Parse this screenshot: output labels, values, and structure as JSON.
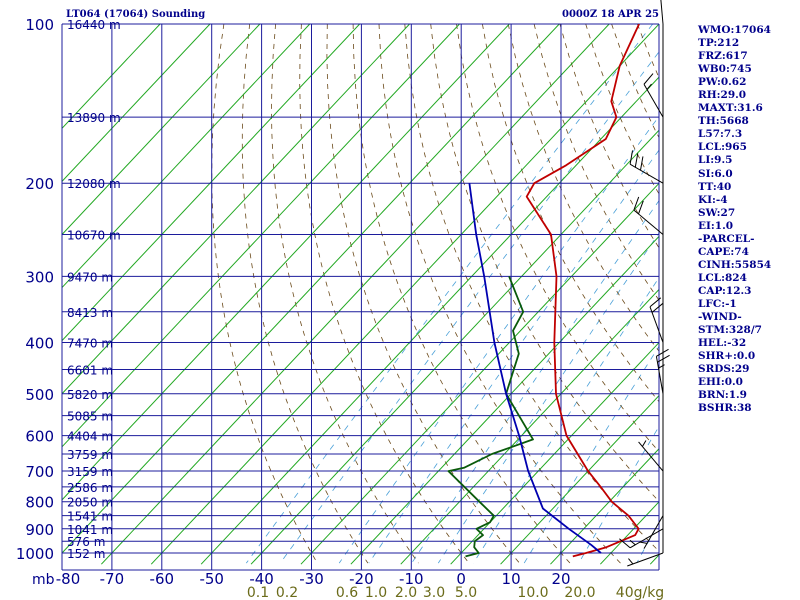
{
  "header": {
    "title": "LT064 (17064) Sounding",
    "datetime": "0000Z 18 APR 25"
  },
  "stats": [
    "WMO:17064",
    "TP:212",
    "FRZ:617",
    "WB0:745",
    "PW:0.62",
    "RH:29.0",
    "MAXT:31.6",
    "TH:5668",
    "L57:7.3",
    "LCL:965",
    "LI:9.5",
    "SI:6.0",
    "TT:40",
    "KI:-4",
    "SW:27",
    "EI:1.0",
    "-PARCEL-",
    "CAPE:74",
    "CINH:55854",
    "LCL:824",
    "CAP:12.3",
    "LFC:-1",
    "-WIND-",
    "STM:328/7",
    "HEL:-32",
    "SHR+:0.0",
    "SRDS:29",
    "EHI:0.0",
    "BRN:1.9",
    "BSHR:38"
  ],
  "colors": {
    "grid": "#1c1c9c",
    "axis_text": "#00008b",
    "temperature": "#c00000",
    "dewpoint": "#0a5a0a",
    "parcel": "#0000b0",
    "isotherm": "#22a822",
    "dry_adiabat": "#6b4a1a",
    "mixing_ratio": "#4aa0d8",
    "wind_barb": "#000000"
  },
  "chart_data": {
    "type": "line",
    "subtype": "skew-T log-P sounding",
    "pressure_unit": "mb",
    "pressure_axis_label": "mb",
    "pressure_levels": [
      100,
      200,
      300,
      400,
      500,
      600,
      700,
      800,
      900,
      1000
    ],
    "pressure_range": [
      100,
      1050
    ],
    "pressure_scale": "log",
    "temperature_ticks": [
      -80,
      -70,
      -60,
      -50,
      -40,
      -30,
      -20,
      -10,
      0,
      10,
      20
    ],
    "mixing_ratio_labels": [
      "0.1",
      "0.2",
      "0.6",
      "1.0",
      "2.0",
      "3.0",
      "5.0",
      "10.0",
      "20.0",
      "40g/kg"
    ],
    "height_labels": [
      {
        "p": 100,
        "text": "16440 m"
      },
      {
        "p": 150,
        "text": "13890 m"
      },
      {
        "p": 200,
        "text": "12080 m"
      },
      {
        "p": 250,
        "text": "10670 m"
      },
      {
        "p": 300,
        "text": "9470 m"
      },
      {
        "p": 350,
        "text": "8413 m"
      },
      {
        "p": 400,
        "text": "7470 m"
      },
      {
        "p": 450,
        "text": "6601 m"
      },
      {
        "p": 500,
        "text": "5820 m"
      },
      {
        "p": 550,
        "text": "5085 m"
      },
      {
        "p": 600,
        "text": "4404 m"
      },
      {
        "p": 650,
        "text": "3759 m"
      },
      {
        "p": 700,
        "text": "3159 m"
      },
      {
        "p": 750,
        "text": "2586 m"
      },
      {
        "p": 800,
        "text": "2050 m"
      },
      {
        "p": 850,
        "text": "1541 m"
      },
      {
        "p": 900,
        "text": "1041 m"
      },
      {
        "p": 950,
        "text": "576 m"
      },
      {
        "p": 1000,
        "text": "152 m"
      }
    ],
    "series": [
      {
        "name": "temperature",
        "points": [
          {
            "p": 1015,
            "t": 23.0
          },
          {
            "p": 1000,
            "t": 25.0
          },
          {
            "p": 975,
            "t": 28.0
          },
          {
            "p": 925,
            "t": 31.5
          },
          {
            "p": 900,
            "t": 31.0
          },
          {
            "p": 850,
            "t": 26.5
          },
          {
            "p": 800,
            "t": 20.5
          },
          {
            "p": 750,
            "t": 15.5
          },
          {
            "p": 700,
            "t": 10.0
          },
          {
            "p": 600,
            "t": -1.0
          },
          {
            "p": 500,
            "t": -11.0
          },
          {
            "p": 400,
            "t": -21.0
          },
          {
            "p": 300,
            "t": -33.0
          },
          {
            "p": 250,
            "t": -42.0
          },
          {
            "p": 212,
            "t": -54.0
          },
          {
            "p": 200,
            "t": -55.0
          },
          {
            "p": 185,
            "t": -52.0
          },
          {
            "p": 165,
            "t": -49.0
          },
          {
            "p": 150,
            "t": -51.0
          },
          {
            "p": 140,
            "t": -55.0
          },
          {
            "p": 120,
            "t": -60.0
          },
          {
            "p": 100,
            "t": -64.0
          }
        ]
      },
      {
        "name": "dewpoint",
        "points": [
          {
            "p": 1015,
            "t": 1.5
          },
          {
            "p": 1000,
            "t": 3.5
          },
          {
            "p": 975,
            "t": 1.5
          },
          {
            "p": 950,
            "t": 0.5
          },
          {
            "p": 925,
            "t": 1.0
          },
          {
            "p": 900,
            "t": -1.5
          },
          {
            "p": 875,
            "t": 0.0
          },
          {
            "p": 850,
            "t": -0.5
          },
          {
            "p": 800,
            "t": -6.0
          },
          {
            "p": 700,
            "t": -18.0
          },
          {
            "p": 690,
            "t": -15.5
          },
          {
            "p": 650,
            "t": -12.5
          },
          {
            "p": 610,
            "t": -7.0
          },
          {
            "p": 500,
            "t": -21.0
          },
          {
            "p": 420,
            "t": -26.0
          },
          {
            "p": 380,
            "t": -31.5
          },
          {
            "p": 350,
            "t": -33.0
          },
          {
            "p": 300,
            "t": -42.5
          }
        ]
      },
      {
        "name": "parcel",
        "points": [
          {
            "p": 1000,
            "t": 28.0
          },
          {
            "p": 965,
            "t": 24.5
          },
          {
            "p": 900,
            "t": 17.0
          },
          {
            "p": 824,
            "t": 8.0
          },
          {
            "p": 700,
            "t": -2.0
          },
          {
            "p": 600,
            "t": -10.5
          },
          {
            "p": 500,
            "t": -21.0
          },
          {
            "p": 400,
            "t": -33.0
          },
          {
            "p": 300,
            "t": -47.5
          },
          {
            "p": 250,
            "t": -57.0
          },
          {
            "p": 200,
            "t": -68.0
          }
        ]
      }
    ],
    "wind_barbs": [
      {
        "p": 100,
        "dir": 355,
        "spd": 20
      },
      {
        "p": 150,
        "dir": 330,
        "spd": 15
      },
      {
        "p": 200,
        "dir": 300,
        "spd": 30
      },
      {
        "p": 250,
        "dir": 310,
        "spd": 20
      },
      {
        "p": 400,
        "dir": 340,
        "spd": 20
      },
      {
        "p": 500,
        "dir": 350,
        "spd": 25
      },
      {
        "p": 700,
        "dir": 320,
        "spd": 5
      },
      {
        "p": 850,
        "dir": 210,
        "spd": 5
      },
      {
        "p": 900,
        "dir": 240,
        "spd": 15
      },
      {
        "p": 1000,
        "dir": 250,
        "spd": 5
      }
    ]
  }
}
